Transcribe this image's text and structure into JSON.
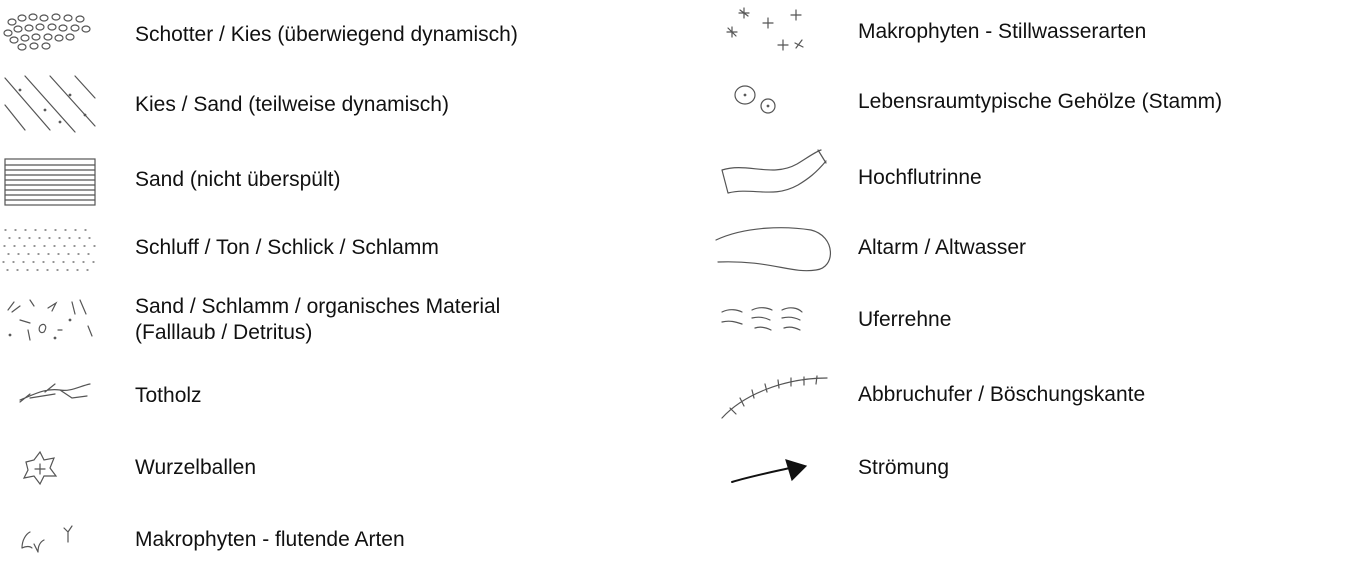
{
  "legend": {
    "left": [
      {
        "label_lines": [
          "Schotter / Kies (überwiegend dynamisch)"
        ]
      },
      {
        "label_lines": [
          "Kies / Sand (teilweise dynamisch)"
        ]
      },
      {
        "label_lines": [
          "Sand (nicht überspült)"
        ]
      },
      {
        "label_lines": [
          "Schluff / Ton / Schlick / Schlamm"
        ]
      },
      {
        "label_lines": [
          "Sand / Schlamm / organisches Material",
          "(Falllaub / Detritus)"
        ]
      },
      {
        "label_lines": [
          "Totholz"
        ]
      },
      {
        "label_lines": [
          "Wurzelballen"
        ]
      },
      {
        "label_lines": [
          "Makrophyten - flutende Arten"
        ]
      }
    ],
    "right": [
      {
        "label_lines": [
          "Makrophyten - Stillwasserarten"
        ]
      },
      {
        "label_lines": [
          "Lebensraumtypische Gehölze (Stamm)"
        ]
      },
      {
        "label_lines": [
          "Hochflutrinne"
        ]
      },
      {
        "label_lines": [
          "Altarm / Altwasser"
        ]
      },
      {
        "label_lines": [
          "Uferrehne"
        ]
      },
      {
        "label_lines": [
          "Abbruchufer / Böschungskante"
        ]
      },
      {
        "label_lines": [
          "Strömung"
        ]
      }
    ]
  }
}
